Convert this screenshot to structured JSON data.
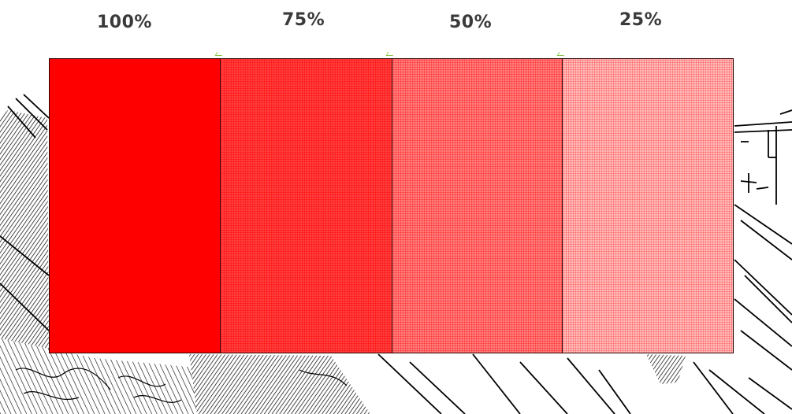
{
  "labels": [
    "100%",
    "75%",
    "50%",
    "25%"
  ],
  "swatches": [
    {
      "intensity": 1.0,
      "color": "#ff0000"
    },
    {
      "intensity": 0.75,
      "color": "#ff0000"
    },
    {
      "intensity": 0.5,
      "color": "#ff0000"
    },
    {
      "intensity": 0.25,
      "color": "#ff0000"
    }
  ],
  "colors": {
    "accent": "#ff0000",
    "border": "#2a0000",
    "label": "#3a3a3a",
    "background": "#ffffff",
    "sketch": "#000000",
    "tick": "#8bc34a"
  }
}
